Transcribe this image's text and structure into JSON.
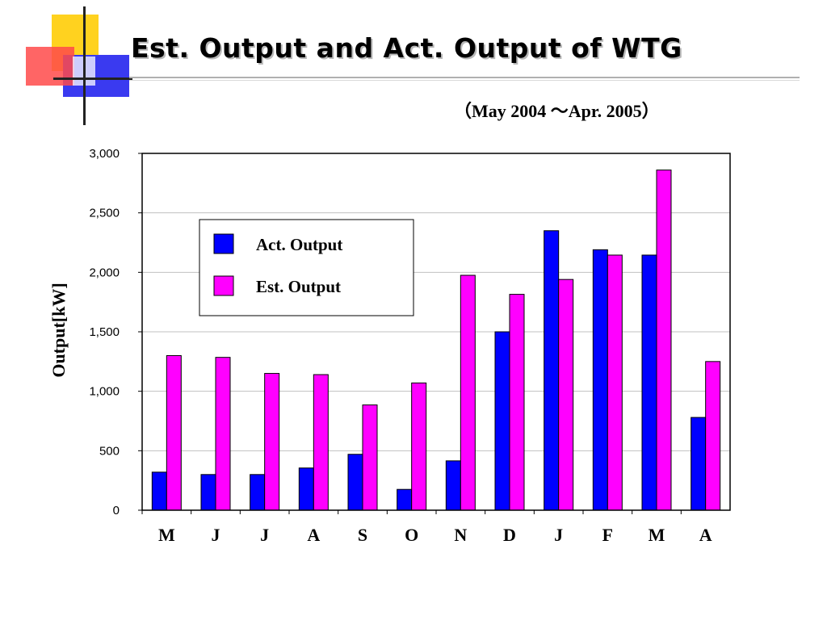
{
  "slide": {
    "title": "Est. Output and Act. Output of WTG",
    "subtitle": "（May 2004 ～Apr. 2005）"
  },
  "colors": {
    "act": "#0000ff",
    "est": "#ff00ff",
    "axis": "#000000",
    "grid": "#c0c0c0"
  },
  "chart_data": {
    "type": "bar",
    "title": "",
    "xlabel": "",
    "ylabel": "Output[kW]",
    "ylim": [
      0,
      3000
    ],
    "yticks": [
      0,
      500,
      1000,
      1500,
      2000,
      2500,
      3000
    ],
    "ytick_labels": [
      "0",
      "500",
      "1,000",
      "1,500",
      "2,000",
      "2,500",
      "3,000"
    ],
    "grid": true,
    "legend_position": "top-left inside plot",
    "categories": [
      "M",
      "J",
      "J",
      "A",
      "S",
      "O",
      "N",
      "D",
      "J",
      "F",
      "M",
      "A"
    ],
    "series": [
      {
        "name": "Act. Output",
        "color": "#0000ff",
        "values": [
          320,
          300,
          300,
          355,
          470,
          175,
          415,
          1500,
          2350,
          2190,
          2145,
          780
        ]
      },
      {
        "name": "Est. Output",
        "color": "#ff00ff",
        "values": [
          1300,
          1285,
          1150,
          1140,
          885,
          1070,
          1975,
          1815,
          1940,
          2145,
          2860,
          1250
        ]
      }
    ]
  }
}
